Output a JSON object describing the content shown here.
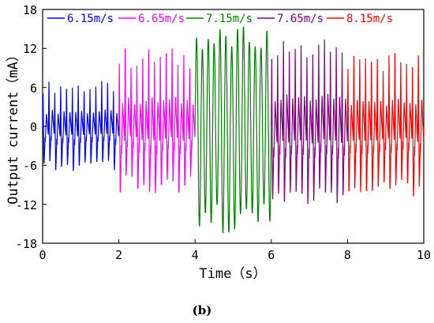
{
  "chart_data": {
    "type": "line",
    "xlabel": "Time（s）",
    "ylabel": "Output current（mA）",
    "xlim": [
      0,
      10
    ],
    "ylim": [
      -18,
      18
    ],
    "x_ticks": [
      "0",
      "2",
      "4",
      "6",
      "8",
      "10"
    ],
    "y_ticks": [
      "-18",
      "-12",
      "-6",
      "0",
      "6",
      "12",
      "18"
    ],
    "legend_position": "top",
    "caption": "(b)",
    "series": [
      {
        "name": "6.15m/s",
        "color": "#0000ff",
        "x_range": [
          0,
          2
        ],
        "cycles": 13,
        "peak_max_mA": 7.5,
        "trough_min_mA": -7.5
      },
      {
        "name": "6.65m/s",
        "color": "#ff00ff",
        "x_range": [
          2,
          4
        ],
        "cycles": 13,
        "peak_max_mA": 13,
        "trough_min_mA": -11
      },
      {
        "name": "7.15m/s",
        "color": "#008000",
        "x_range": [
          4,
          6
        ],
        "cycles": 13,
        "peak_max_mA": 15.5,
        "trough_min_mA": -16.5
      },
      {
        "name": "7.65m/s",
        "color": "#800080",
        "x_range": [
          6,
          8
        ],
        "cycles": 13,
        "peak_max_mA": 14.5,
        "trough_min_mA": -13
      },
      {
        "name": "8.15m/s",
        "color": "#ff0000",
        "x_range": [
          8,
          10
        ],
        "cycles": 13,
        "peak_max_mA": 12.5,
        "trough_min_mA": -11.5
      }
    ]
  }
}
